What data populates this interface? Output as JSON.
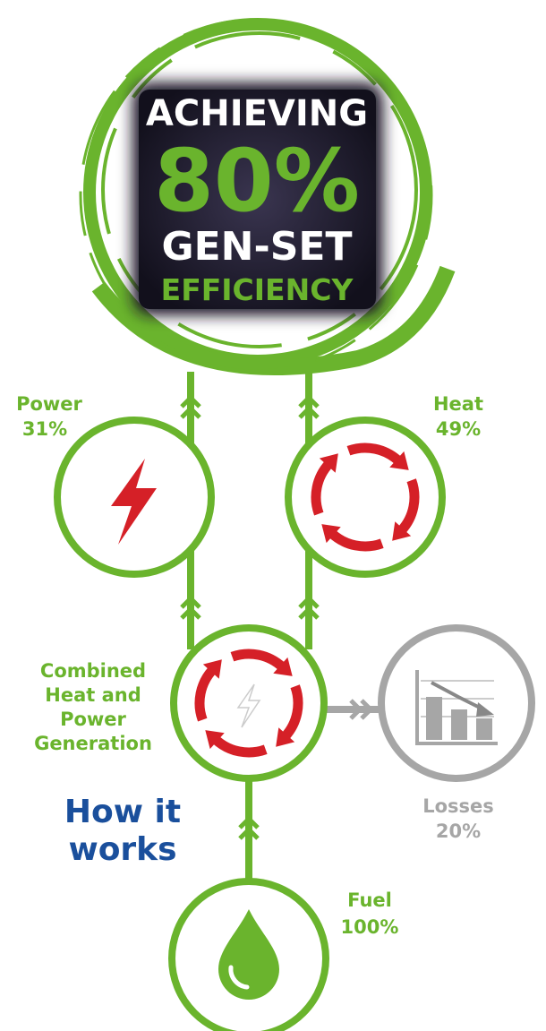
{
  "header": {
    "line1": "ACHIEVING",
    "line2": "80%",
    "line3": "GEN-SET",
    "line4": "EFFICIENCY"
  },
  "nodes": [
    {
      "label": "Power",
      "value": "31%"
    },
    {
      "label": "Heat",
      "value": "49%"
    },
    {
      "label_lines": [
        "Combined",
        "Heat and",
        "Power",
        "Generation"
      ]
    },
    {
      "label": "Losses",
      "value": "20%"
    },
    {
      "label": "Fuel",
      "value": "100%"
    }
  ],
  "caption": [
    "How it",
    "works"
  ]
}
